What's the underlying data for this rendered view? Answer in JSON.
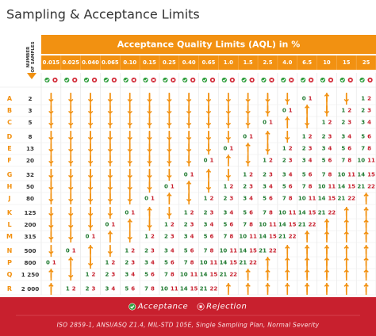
{
  "title": "Sampling & Acceptance Limits",
  "table": {
    "header": "Acceptance Quality Limits (AQL) in %",
    "sample_header": [
      "NUMBER",
      "OF SAMPLES"
    ],
    "aql": [
      "0.015",
      "0.025",
      "0.040",
      "0.065",
      "0.10",
      "0.15",
      "0.25",
      "0.40",
      "0.65",
      "1.0",
      "1.5",
      "2.5",
      "4.0",
      "6.5",
      "10",
      "15",
      "25"
    ],
    "rows": [
      {
        "letter": "A",
        "samples": "2",
        "cells": [
          "↓",
          "↓",
          "↓",
          "↓",
          "↓",
          "↓",
          "↓",
          "↓",
          "↓",
          "↓",
          "↓",
          "↓",
          "↓",
          [
            0,
            1
          ],
          "↑",
          "↓",
          [
            1,
            2
          ]
        ]
      },
      {
        "letter": "B",
        "samples": "3",
        "cells": [
          "↓",
          "↓",
          "↓",
          "↓",
          "↓",
          "↓",
          "↓",
          "↓",
          "↓",
          "↓",
          "↓",
          "↓",
          [
            0,
            1
          ],
          "↑",
          "↓",
          [
            1,
            2
          ],
          [
            2,
            3
          ]
        ]
      },
      {
        "letter": "C",
        "samples": "5",
        "cells": [
          "↓",
          "↓",
          "↓",
          "↓",
          "↓",
          "↓",
          "↓",
          "↓",
          "↓",
          "↓",
          "↓",
          [
            0,
            1
          ],
          "↑",
          "↓",
          [
            1,
            2
          ],
          [
            2,
            3
          ],
          [
            3,
            4
          ]
        ]
      },
      {
        "letter": "D",
        "samples": "8",
        "cells": [
          "↓",
          "↓",
          "↓",
          "↓",
          "↓",
          "↓",
          "↓",
          "↓",
          "↓",
          "↓",
          [
            0,
            1
          ],
          "↑",
          "↓",
          [
            1,
            2
          ],
          [
            2,
            3
          ],
          [
            3,
            4
          ],
          [
            5,
            6
          ]
        ]
      },
      {
        "letter": "E",
        "samples": "13",
        "cells": [
          "↓",
          "↓",
          "↓",
          "↓",
          "↓",
          "↓",
          "↓",
          "↓",
          "↓",
          [
            0,
            1
          ],
          "↑",
          "↓",
          [
            1,
            2
          ],
          [
            2,
            3
          ],
          [
            3,
            4
          ],
          [
            5,
            6
          ],
          [
            7,
            8
          ]
        ]
      },
      {
        "letter": "F",
        "samples": "20",
        "cells": [
          "↓",
          "↓",
          "↓",
          "↓",
          "↓",
          "↓",
          "↓",
          "↓",
          [
            0,
            1
          ],
          "↑",
          "↓",
          [
            1,
            2
          ],
          [
            2,
            3
          ],
          [
            3,
            4
          ],
          [
            5,
            6
          ],
          [
            7,
            8
          ],
          [
            10,
            11
          ]
        ]
      },
      {
        "letter": "G",
        "samples": "32",
        "cells": [
          "↓",
          "↓",
          "↓",
          "↓",
          "↓",
          "↓",
          "↓",
          [
            0,
            1
          ],
          "↑",
          "↓",
          [
            1,
            2
          ],
          [
            2,
            3
          ],
          [
            3,
            4
          ],
          [
            5,
            6
          ],
          [
            7,
            8
          ],
          [
            10,
            11
          ],
          [
            14,
            15
          ]
        ]
      },
      {
        "letter": "H",
        "samples": "50",
        "cells": [
          "↓",
          "↓",
          "↓",
          "↓",
          "↓",
          "↓",
          [
            0,
            1
          ],
          "↑",
          "↓",
          [
            1,
            2
          ],
          [
            2,
            3
          ],
          [
            3,
            4
          ],
          [
            5,
            6
          ],
          [
            7,
            8
          ],
          [
            10,
            11
          ],
          [
            14,
            15
          ],
          [
            21,
            22
          ]
        ]
      },
      {
        "letter": "J",
        "samples": "80",
        "cells": [
          "↓",
          "↓",
          "↓",
          "↓",
          "↓",
          [
            0,
            1
          ],
          "↑",
          "↓",
          [
            1,
            2
          ],
          [
            2,
            3
          ],
          [
            3,
            4
          ],
          [
            5,
            6
          ],
          [
            7,
            8
          ],
          [
            10,
            11
          ],
          [
            14,
            15
          ],
          [
            21,
            22
          ],
          "↑"
        ]
      },
      {
        "letter": "K",
        "samples": "125",
        "cells": [
          "↓",
          "↓",
          "↓",
          "↓",
          [
            0,
            1
          ],
          "↑",
          "↓",
          [
            1,
            2
          ],
          [
            2,
            3
          ],
          [
            3,
            4
          ],
          [
            5,
            6
          ],
          [
            7,
            8
          ],
          [
            10,
            11
          ],
          [
            14,
            15
          ],
          [
            21,
            22
          ],
          "↑",
          "↑"
        ]
      },
      {
        "letter": "L",
        "samples": "200",
        "cells": [
          "↓",
          "↓",
          "↓",
          [
            0,
            1
          ],
          "↑",
          "↓",
          [
            1,
            2
          ],
          [
            2,
            3
          ],
          [
            3,
            4
          ],
          [
            5,
            6
          ],
          [
            7,
            8
          ],
          [
            10,
            11
          ],
          [
            14,
            15
          ],
          [
            21,
            22
          ],
          "↑",
          "↑",
          "↑"
        ]
      },
      {
        "letter": "M",
        "samples": "315",
        "cells": [
          "↓",
          "↓",
          [
            0,
            1
          ],
          "↑",
          "↓",
          [
            1,
            2
          ],
          [
            2,
            3
          ],
          [
            3,
            4
          ],
          [
            5,
            6
          ],
          [
            7,
            8
          ],
          [
            10,
            11
          ],
          [
            14,
            15
          ],
          [
            21,
            22
          ],
          "↑",
          "↑",
          "↑",
          "↑"
        ]
      },
      {
        "letter": "N",
        "samples": "500",
        "cells": [
          "↓",
          [
            0,
            1
          ],
          "↑",
          "↓",
          [
            1,
            2
          ],
          [
            2,
            3
          ],
          [
            3,
            4
          ],
          [
            5,
            6
          ],
          [
            7,
            8
          ],
          [
            10,
            11
          ],
          [
            14,
            15
          ],
          [
            21,
            22
          ],
          "↑",
          "↑",
          "↑",
          "↑",
          "↑"
        ]
      },
      {
        "letter": "P",
        "samples": "800",
        "cells": [
          [
            0,
            1
          ],
          "↑",
          "↓",
          [
            1,
            2
          ],
          [
            2,
            3
          ],
          [
            3,
            4
          ],
          [
            5,
            6
          ],
          [
            7,
            8
          ],
          [
            10,
            11
          ],
          [
            14,
            15
          ],
          [
            21,
            22
          ],
          "↑",
          "↑",
          "↑",
          "↑",
          "↑",
          "↑"
        ]
      },
      {
        "letter": "Q",
        "samples": "1 250",
        "cells": [
          "↑",
          "↓",
          [
            1,
            2
          ],
          [
            2,
            3
          ],
          [
            3,
            4
          ],
          [
            5,
            6
          ],
          [
            7,
            8
          ],
          [
            10,
            11
          ],
          [
            14,
            15
          ],
          [
            21,
            22
          ],
          "↑",
          "↑",
          "↑",
          "↑",
          "↑",
          "↑",
          "↑"
        ]
      },
      {
        "letter": "R",
        "samples": "2 000",
        "cells": [
          "↑",
          [
            1,
            2
          ],
          [
            2,
            3
          ],
          [
            3,
            4
          ],
          [
            5,
            6
          ],
          [
            7,
            8
          ],
          [
            10,
            11
          ],
          [
            14,
            15
          ],
          [
            21,
            22
          ],
          "↑",
          "↑",
          "↑",
          "↑",
          "↑",
          "↑",
          "↑",
          "↑"
        ]
      }
    ]
  },
  "footer": {
    "acceptance": "Acceptance",
    "rejection": "Rejection",
    "note": "ISO 2859-1, ANSI/ASQ Z1.4, MIL-STD 105E, Single Sampling Plan, Normal Severity"
  }
}
